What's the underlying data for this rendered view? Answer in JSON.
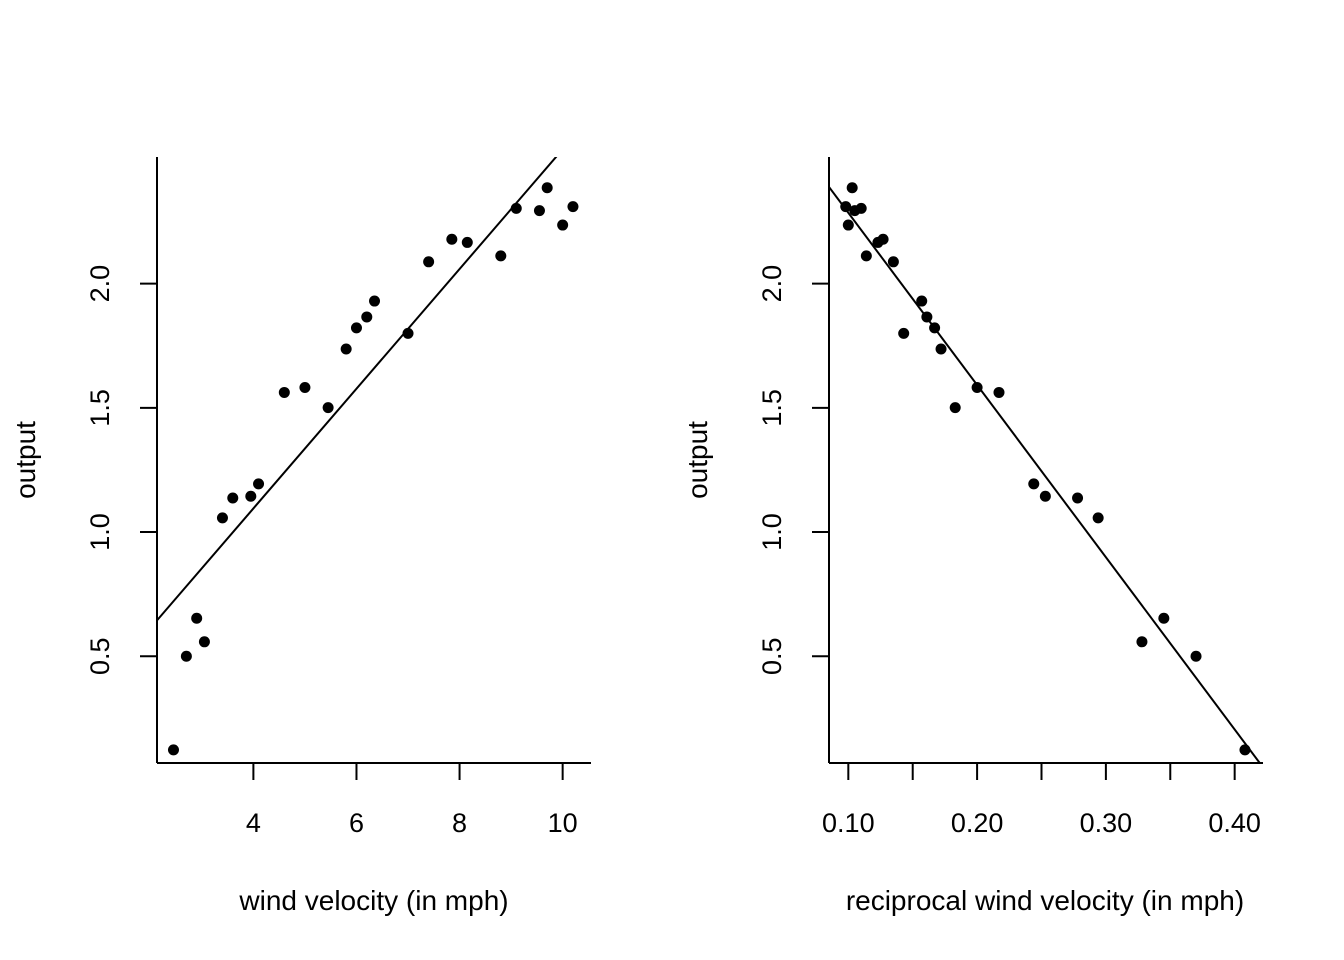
{
  "chart_data": [
    {
      "type": "scatter",
      "title": "",
      "xlabel": "wind velocity (in mph)",
      "ylabel": "output",
      "xlim": [
        2.13,
        10.55
      ],
      "ylim": [
        0.07,
        2.51
      ],
      "x_ticks": [
        4,
        6,
        8,
        10
      ],
      "x_tick_labels": [
        "4",
        "6",
        "8",
        "10"
      ],
      "y_ticks": [
        0.5,
        1.0,
        1.5,
        2.0
      ],
      "y_tick_labels": [
        "0.5",
        "1.0",
        "1.5",
        "2.0"
      ],
      "grid": false,
      "x": [
        2.45,
        2.7,
        2.9,
        3.05,
        3.4,
        3.6,
        3.95,
        4.1,
        4.6,
        5.0,
        5.45,
        5.8,
        6.0,
        6.2,
        6.35,
        7.0,
        7.4,
        7.85,
        8.15,
        8.8,
        9.1,
        9.55,
        9.7,
        10.0,
        10.2
      ],
      "y": [
        0.123,
        0.5,
        0.653,
        0.558,
        1.057,
        1.137,
        1.144,
        1.194,
        1.562,
        1.582,
        1.501,
        1.737,
        1.822,
        1.866,
        1.93,
        1.8,
        2.088,
        2.179,
        2.166,
        2.112,
        2.303,
        2.294,
        2.386,
        2.236,
        2.31
      ],
      "fit_line": {
        "intercept": 0.131,
        "slope": 0.241
      }
    },
    {
      "type": "scatter",
      "title": "",
      "xlabel": "reciprocal wind velocity (in mph)",
      "ylabel": "output",
      "xlim": [
        0.085,
        0.422
      ],
      "ylim": [
        0.07,
        2.51
      ],
      "x_ticks": [
        0.1,
        0.15,
        0.2,
        0.25,
        0.3,
        0.35,
        0.4
      ],
      "x_tick_labels": [
        "0.10",
        "",
        "0.20",
        "",
        "0.30",
        "",
        "0.40"
      ],
      "y_ticks": [
        0.5,
        1.0,
        1.5,
        2.0
      ],
      "y_tick_labels": [
        "0.5",
        "1.0",
        "1.5",
        "2.0"
      ],
      "grid": false,
      "x": [
        0.408,
        0.37,
        0.345,
        0.328,
        0.294,
        0.278,
        0.253,
        0.244,
        0.217,
        0.2,
        0.183,
        0.172,
        0.167,
        0.161,
        0.157,
        0.143,
        0.135,
        0.127,
        0.123,
        0.114,
        0.11,
        0.105,
        0.103,
        0.1,
        0.098
      ],
      "y": [
        0.123,
        0.5,
        0.653,
        0.558,
        1.057,
        1.137,
        1.144,
        1.194,
        1.562,
        1.582,
        1.501,
        1.737,
        1.822,
        1.866,
        1.93,
        1.8,
        2.088,
        2.179,
        2.166,
        2.112,
        2.303,
        2.294,
        2.386,
        2.236,
        2.31
      ],
      "fit_line": {
        "intercept": 2.979,
        "slope": -6.935
      }
    }
  ]
}
